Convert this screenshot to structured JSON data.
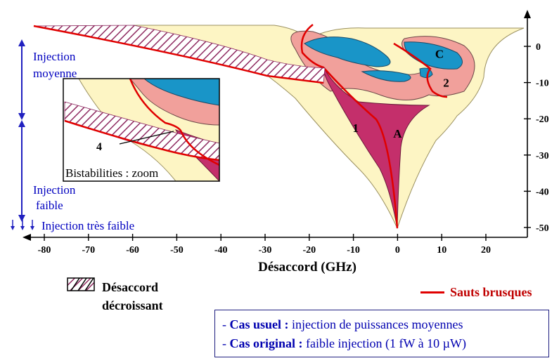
{
  "chart_data": {
    "type": "area",
    "title": "",
    "xlabel": "Désaccord (GHz)",
    "ylabel": "",
    "xlim": [
      -83,
      29
    ],
    "ylim": [
      -52,
      10.5
    ],
    "x_ticks": [
      -80,
      -70,
      -60,
      -50,
      -40,
      -30,
      -20,
      -10,
      0,
      10,
      20
    ],
    "y_ticks": [
      0,
      -10,
      -20,
      -30,
      -40,
      -50
    ],
    "grid": false,
    "regions": [
      {
        "label": "1",
        "x": -9.5,
        "y": -22.5
      },
      {
        "label": "A",
        "x": 0,
        "y": -24
      },
      {
        "label": "2",
        "x": 11,
        "y": -10
      },
      {
        "label": "C",
        "x": 9.5,
        "y": -2
      }
    ],
    "injection_levels": [
      {
        "label": "Injection moyenne",
        "y_range": [
          -20.5,
          0
        ]
      },
      {
        "label": "Injection faible",
        "y_range": [
          -47,
          -20.5
        ]
      },
      {
        "label": "Injection très faible",
        "y_range": [
          -51,
          -49
        ]
      }
    ],
    "inset": {
      "title": "Bistabilities : zoom",
      "label": "4"
    }
  },
  "colors": {
    "outer_region": "#fdf5c4",
    "region_A": "#c42f6b",
    "pink_region": "#f1a09b",
    "blue_region": "#1995c8",
    "jump_line": "#e00000",
    "hatch": "#8e2a60",
    "annotation_blue": "#0000c0"
  },
  "legend": {
    "hatch_label_line1": "Désaccord",
    "hatch_label_line2": "décroissant",
    "jumps_label": "Sauts brusques"
  },
  "notes": [
    {
      "dash": "- ",
      "bold": "Cas usuel :",
      "text": " injection de puissances moyennes"
    },
    {
      "dash": "- ",
      "bold": "Cas original :",
      "text": " faible injection (1 fW à 10 µW)"
    }
  ]
}
